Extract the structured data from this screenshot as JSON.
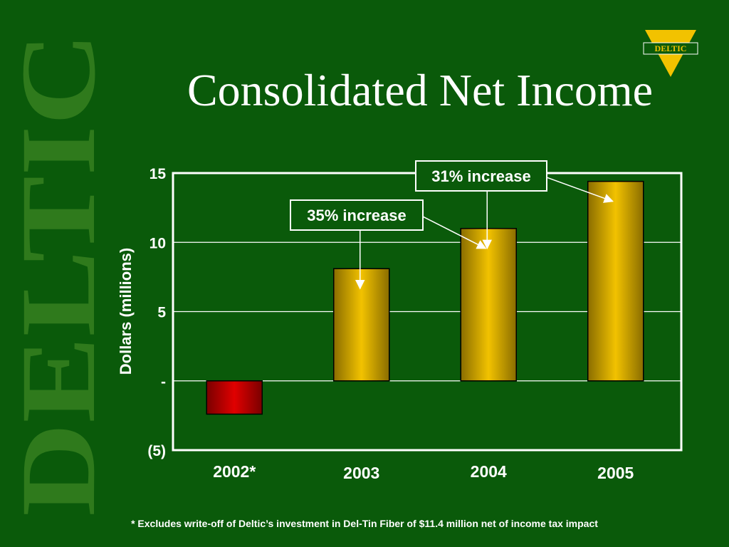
{
  "slide": {
    "title": "Consolidated Net Income",
    "footnote": "* Excludes write-off of Deltic’s investment in Del-Tin Fiber of $11.4 million net of income tax impact",
    "logo_text": "DELTIC",
    "watermark_text": "DELTIC"
  },
  "colors": {
    "background": "#0a5a0a",
    "watermark": "#2f7a1c",
    "positive_bar": "#f2c200",
    "negative_bar": "#e00000",
    "logo": "#f2c200"
  },
  "chart_data": {
    "type": "bar",
    "title": "Consolidated Net Income",
    "ylabel": "Dollars (millions)",
    "xlabel": "",
    "categories": [
      "2002*",
      "2003",
      "2004",
      "2005"
    ],
    "values": [
      -2.4,
      8.1,
      11.0,
      14.4
    ],
    "ylim": [
      -5,
      15
    ],
    "yticks": [
      {
        "value": 15,
        "label": "15"
      },
      {
        "value": 10,
        "label": "10"
      },
      {
        "value": 5,
        "label": "5"
      },
      {
        "value": 0,
        "label": "-"
      },
      {
        "value": -5,
        "label": "(5)"
      }
    ],
    "grid": true,
    "annotations": [
      {
        "text": "35% increase",
        "between": [
          "2003",
          "2004"
        ]
      },
      {
        "text": "31% increase",
        "between": [
          "2004",
          "2005"
        ]
      }
    ]
  }
}
